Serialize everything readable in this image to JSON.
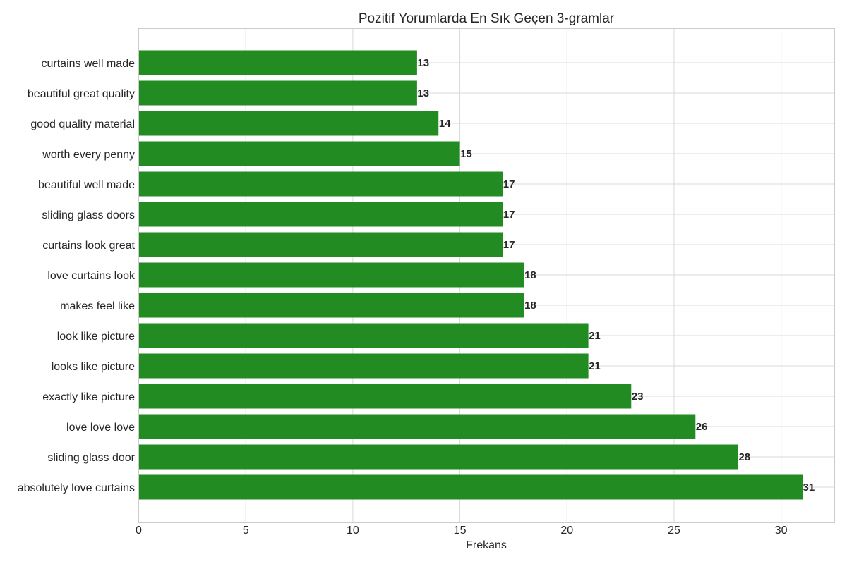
{
  "chart_data": {
    "type": "bar",
    "orientation": "horizontal",
    "title": "Pozitif Yorumlarda En Sık Geçen 3-gramlar",
    "xlabel": "Frekans",
    "ylabel": "",
    "xlim": [
      0,
      32.5
    ],
    "xticks": [
      0,
      5,
      10,
      15,
      20,
      25,
      30
    ],
    "grid": true,
    "bar_color": "#228b22",
    "categories": [
      "curtains well made",
      "beautiful great quality",
      "good quality material",
      "worth every penny",
      "beautiful well made",
      "sliding glass doors",
      "curtains look great",
      "love curtains look",
      "makes feel like",
      "look like picture",
      "looks like picture",
      "exactly like picture",
      "love love love",
      "sliding glass door",
      "absolutely love curtains"
    ],
    "values": [
      13,
      13,
      14,
      15,
      17,
      17,
      17,
      18,
      18,
      21,
      21,
      23,
      26,
      28,
      31
    ]
  }
}
